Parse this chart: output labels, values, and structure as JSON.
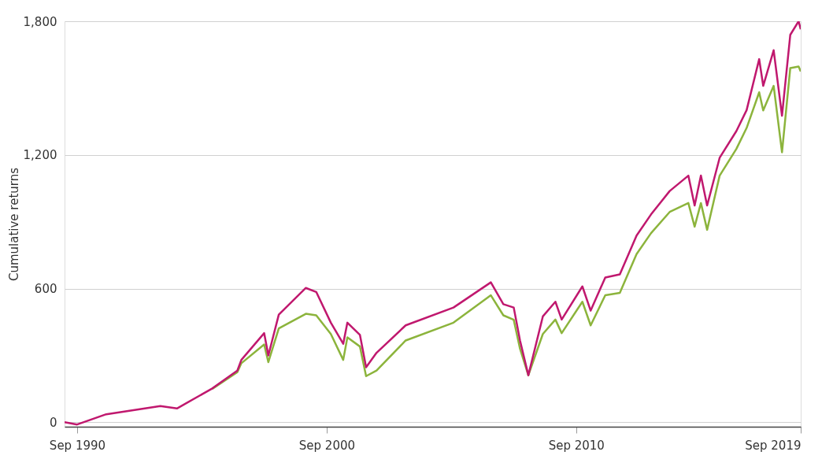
{
  "chart_data": {
    "type": "line",
    "ylabel": "Cumulative returns",
    "x": [
      "1990-03",
      "1990-09",
      "1991-11",
      "1994-01",
      "1994-09",
      "1996-02",
      "1997-02",
      "1997-04",
      "1998-03",
      "1998-05",
      "1998-10",
      "1999-11",
      "2000-04",
      "2000-11",
      "2001-05",
      "2001-07",
      "2002-01",
      "2002-04",
      "2002-09",
      "2003-11",
      "2005-10",
      "2007-04",
      "2007-10",
      "2008-03",
      "2008-06",
      "2008-10",
      "2009-05",
      "2009-11",
      "2010-02",
      "2010-12",
      "2011-04",
      "2011-11",
      "2012-06",
      "2013-02",
      "2013-09",
      "2014-06",
      "2015-03",
      "2015-06",
      "2015-09",
      "2015-12",
      "2016-06",
      "2017-02",
      "2017-07",
      "2018-01",
      "2018-03",
      "2018-08",
      "2018-12",
      "2019-04",
      "2019-08",
      "2019-09"
    ],
    "series": [
      {
        "color": "#8cb43c",
        "values": [
          null,
          null,
          null,
          null,
          null,
          150,
          225,
          265,
          349,
          270,
          421,
          487,
          480,
          396,
          280,
          381,
          340,
          207,
          232,
          367,
          447,
          570,
          480,
          460,
          330,
          211,
          396,
          461,
          400,
          541,
          435,
          570,
          581,
          755,
          849,
          944,
          984,
          878,
          984,
          864,
          1107,
          1227,
          1321,
          1481,
          1400,
          1510,
          1212,
          1590,
          1597,
          1575
        ]
      },
      {
        "color": "#c0186e",
        "values": [
          0,
          -10,
          36,
          73,
          62,
          152,
          232,
          280,
          400,
          300,
          483,
          603,
          585,
          447,
          352,
          447,
          392,
          247,
          312,
          435,
          515,
          628,
          530,
          515,
          367,
          211,
          475,
          541,
          461,
          610,
          501,
          650,
          664,
          838,
          933,
          1038,
          1107,
          973,
          1107,
          973,
          1187,
          1307,
          1401,
          1630,
          1510,
          1670,
          1376,
          1739,
          1800,
          1764
        ]
      }
    ],
    "xlim": [
      "1990-03",
      "2019-09"
    ],
    "xticks": [
      {
        "value": "1990-09",
        "label": "Sep 1990"
      },
      {
        "value": "2000-09",
        "label": "Sep 2000"
      },
      {
        "value": "2010-09",
        "label": "Sep 2010"
      },
      {
        "value": "2019-09",
        "label": "Sep 2019"
      }
    ],
    "ylim": [
      -20,
      1800
    ],
    "yticks": [
      0,
      {
        "value": 600,
        "label": "600"
      },
      {
        "value": 1200,
        "label": "1,200"
      },
      {
        "value": 1800,
        "label": "1,800"
      }
    ],
    "grid": "y"
  }
}
